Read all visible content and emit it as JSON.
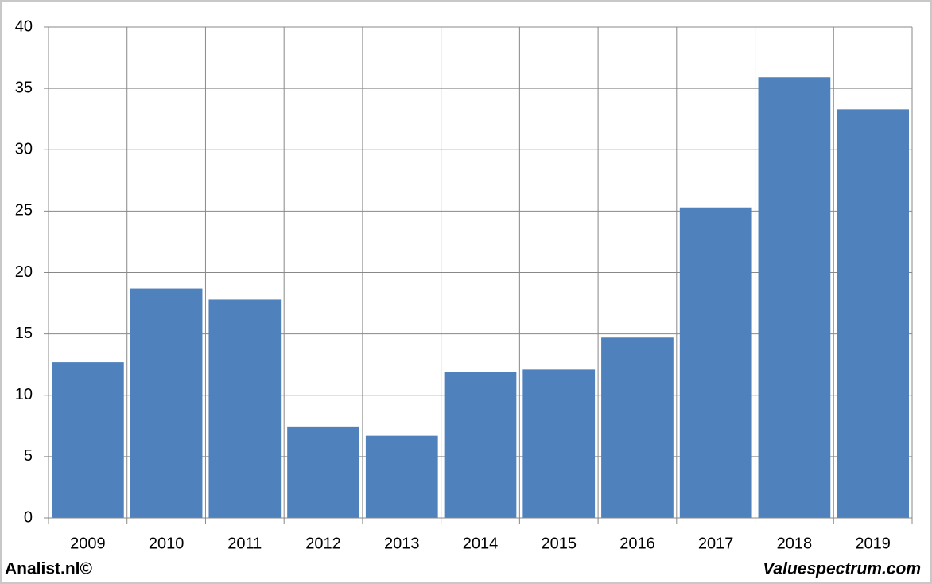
{
  "chart_data": {
    "type": "bar",
    "categories": [
      "2009",
      "2010",
      "2011",
      "2012",
      "2013",
      "2014",
      "2015",
      "2016",
      "2017",
      "2018",
      "2019"
    ],
    "values": [
      12.7,
      18.7,
      17.8,
      7.4,
      6.7,
      11.9,
      12.1,
      14.7,
      25.3,
      35.9,
      33.3
    ],
    "color": "#4f81bd",
    "ylim": [
      0,
      40
    ],
    "yticks": [
      0,
      5,
      10,
      15,
      20,
      25,
      30,
      35,
      40
    ],
    "grid": true,
    "footer_left": "Analist.nl©",
    "footer_right": "Valuespectrum.com"
  }
}
